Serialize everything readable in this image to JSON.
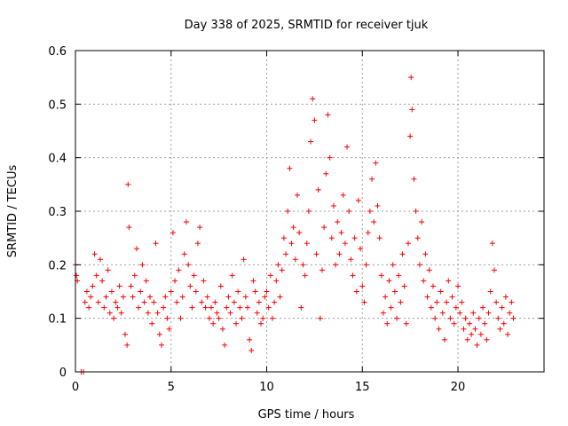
{
  "chart_data": {
    "type": "scatter",
    "title": "Day 338 of 2025, SRMTID for receiver tjuk",
    "xlabel": "GPS time / hours",
    "ylabel": "SRMTID / TECUs",
    "xlim": [
      0,
      24.5
    ],
    "ylim": [
      0,
      0.6
    ],
    "x_ticks": [
      0,
      5,
      10,
      15,
      20
    ],
    "x_tick_labels": [
      "0",
      "5",
      "10",
      "15",
      "20"
    ],
    "y_ticks": [
      0,
      0.1,
      0.2,
      0.3,
      0.4,
      0.5,
      0.6
    ],
    "y_tick_labels": [
      "0",
      "0.1",
      "0.2",
      "0.3",
      "0.4",
      "0.5",
      "0.6"
    ],
    "grid": true,
    "marker": "+",
    "series": [
      {
        "name": "SRMTID",
        "color": "#ff0000",
        "points": [
          [
            0.0,
            0.2
          ],
          [
            0.05,
            0.18
          ],
          [
            0.1,
            0.17
          ],
          [
            0.3,
            0.0
          ],
          [
            0.42,
            0.0
          ],
          [
            0.5,
            0.13
          ],
          [
            0.6,
            0.15
          ],
          [
            0.7,
            0.12
          ],
          [
            0.8,
            0.14
          ],
          [
            0.9,
            0.16
          ],
          [
            1.0,
            0.22
          ],
          [
            1.1,
            0.18
          ],
          [
            1.2,
            0.13
          ],
          [
            1.3,
            0.21
          ],
          [
            1.4,
            0.17
          ],
          [
            1.5,
            0.12
          ],
          [
            1.6,
            0.14
          ],
          [
            1.7,
            0.19
          ],
          [
            1.8,
            0.11
          ],
          [
            1.9,
            0.15
          ],
          [
            2.0,
            0.1
          ],
          [
            2.1,
            0.13
          ],
          [
            2.2,
            0.12
          ],
          [
            2.3,
            0.16
          ],
          [
            2.4,
            0.11
          ],
          [
            2.5,
            0.14
          ],
          [
            2.6,
            0.07
          ],
          [
            2.7,
            0.05
          ],
          [
            2.75,
            0.35
          ],
          [
            2.8,
            0.27
          ],
          [
            2.9,
            0.16
          ],
          [
            3.0,
            0.14
          ],
          [
            3.1,
            0.18
          ],
          [
            3.2,
            0.23
          ],
          [
            3.3,
            0.12
          ],
          [
            3.4,
            0.15
          ],
          [
            3.5,
            0.2
          ],
          [
            3.6,
            0.13
          ],
          [
            3.7,
            0.17
          ],
          [
            3.8,
            0.11
          ],
          [
            3.9,
            0.14
          ],
          [
            4.0,
            0.09
          ],
          [
            4.1,
            0.13
          ],
          [
            4.2,
            0.24
          ],
          [
            4.3,
            0.11
          ],
          [
            4.4,
            0.07
          ],
          [
            4.5,
            0.05
          ],
          [
            4.6,
            0.12
          ],
          [
            4.7,
            0.14
          ],
          [
            4.8,
            0.1
          ],
          [
            4.9,
            0.08
          ],
          [
            5.0,
            0.15
          ],
          [
            5.1,
            0.26
          ],
          [
            5.2,
            0.17
          ],
          [
            5.3,
            0.13
          ],
          [
            5.4,
            0.19
          ],
          [
            5.5,
            0.1
          ],
          [
            5.6,
            0.14
          ],
          [
            5.7,
            0.22
          ],
          [
            5.8,
            0.28
          ],
          [
            5.9,
            0.2
          ],
          [
            6.0,
            0.16
          ],
          [
            6.1,
            0.12
          ],
          [
            6.2,
            0.18
          ],
          [
            6.3,
            0.15
          ],
          [
            6.4,
            0.24
          ],
          [
            6.5,
            0.27
          ],
          [
            6.6,
            0.13
          ],
          [
            6.7,
            0.17
          ],
          [
            6.8,
            0.12
          ],
          [
            6.9,
            0.14
          ],
          [
            7.0,
            0.1
          ],
          [
            7.1,
            0.12
          ],
          [
            7.2,
            0.09
          ],
          [
            7.3,
            0.13
          ],
          [
            7.4,
            0.11
          ],
          [
            7.5,
            0.1
          ],
          [
            7.6,
            0.16
          ],
          [
            7.7,
            0.08
          ],
          [
            7.8,
            0.05
          ],
          [
            7.9,
            0.12
          ],
          [
            8.0,
            0.14
          ],
          [
            8.1,
            0.11
          ],
          [
            8.2,
            0.18
          ],
          [
            8.3,
            0.13
          ],
          [
            8.4,
            0.09
          ],
          [
            8.5,
            0.15
          ],
          [
            8.6,
            0.12
          ],
          [
            8.7,
            0.1
          ],
          [
            8.8,
            0.21
          ],
          [
            8.9,
            0.14
          ],
          [
            9.0,
            0.12
          ],
          [
            9.1,
            0.06
          ],
          [
            9.2,
            0.04
          ],
          [
            9.3,
            0.17
          ],
          [
            9.4,
            0.15
          ],
          [
            9.5,
            0.11
          ],
          [
            9.6,
            0.13
          ],
          [
            9.7,
            0.09
          ],
          [
            9.8,
            0.1
          ],
          [
            9.9,
            0.14
          ],
          [
            10.0,
            0.15
          ],
          [
            10.1,
            0.12
          ],
          [
            10.2,
            0.18
          ],
          [
            10.3,
            0.1
          ],
          [
            10.4,
            0.13
          ],
          [
            10.5,
            0.17
          ],
          [
            10.6,
            0.2
          ],
          [
            10.7,
            0.14
          ],
          [
            10.8,
            0.19
          ],
          [
            10.9,
            0.25
          ],
          [
            11.0,
            0.22
          ],
          [
            11.1,
            0.3
          ],
          [
            11.2,
            0.38
          ],
          [
            11.3,
            0.24
          ],
          [
            11.4,
            0.27
          ],
          [
            11.5,
            0.21
          ],
          [
            11.6,
            0.33
          ],
          [
            11.7,
            0.26
          ],
          [
            11.8,
            0.12
          ],
          [
            11.9,
            0.2
          ],
          [
            12.0,
            0.18
          ],
          [
            12.1,
            0.24
          ],
          [
            12.2,
            0.3
          ],
          [
            12.3,
            0.43
          ],
          [
            12.4,
            0.51
          ],
          [
            12.5,
            0.47
          ],
          [
            12.6,
            0.22
          ],
          [
            12.7,
            0.34
          ],
          [
            12.8,
            0.1
          ],
          [
            12.9,
            0.19
          ],
          [
            13.0,
            0.27
          ],
          [
            13.1,
            0.37
          ],
          [
            13.2,
            0.48
          ],
          [
            13.3,
            0.4
          ],
          [
            13.4,
            0.25
          ],
          [
            13.5,
            0.31
          ],
          [
            13.6,
            0.2
          ],
          [
            13.7,
            0.28
          ],
          [
            13.8,
            0.22
          ],
          [
            13.9,
            0.26
          ],
          [
            14.0,
            0.33
          ],
          [
            14.1,
            0.24
          ],
          [
            14.2,
            0.42
          ],
          [
            14.3,
            0.3
          ],
          [
            14.4,
            0.21
          ],
          [
            14.5,
            0.18
          ],
          [
            14.6,
            0.25
          ],
          [
            14.7,
            0.15
          ],
          [
            14.8,
            0.32
          ],
          [
            14.9,
            0.23
          ],
          [
            15.0,
            0.16
          ],
          [
            15.1,
            0.13
          ],
          [
            15.2,
            0.2
          ],
          [
            15.3,
            0.26
          ],
          [
            15.4,
            0.3
          ],
          [
            15.5,
            0.36
          ],
          [
            15.6,
            0.28
          ],
          [
            15.7,
            0.39
          ],
          [
            15.8,
            0.31
          ],
          [
            15.9,
            0.25
          ],
          [
            16.0,
            0.18
          ],
          [
            16.1,
            0.11
          ],
          [
            16.2,
            0.14
          ],
          [
            16.3,
            0.09
          ],
          [
            16.4,
            0.17
          ],
          [
            16.5,
            0.12
          ],
          [
            16.6,
            0.2
          ],
          [
            16.7,
            0.15
          ],
          [
            16.8,
            0.1
          ],
          [
            16.9,
            0.18
          ],
          [
            17.0,
            0.13
          ],
          [
            17.1,
            0.22
          ],
          [
            17.2,
            0.16
          ],
          [
            17.3,
            0.09
          ],
          [
            17.4,
            0.24
          ],
          [
            17.5,
            0.44
          ],
          [
            17.55,
            0.55
          ],
          [
            17.6,
            0.49
          ],
          [
            17.7,
            0.36
          ],
          [
            17.8,
            0.3
          ],
          [
            17.9,
            0.25
          ],
          [
            18.0,
            0.2
          ],
          [
            18.1,
            0.28
          ],
          [
            18.2,
            0.17
          ],
          [
            18.3,
            0.22
          ],
          [
            18.4,
            0.14
          ],
          [
            18.5,
            0.19
          ],
          [
            18.6,
            0.12
          ],
          [
            18.7,
            0.16
          ],
          [
            18.8,
            0.1
          ],
          [
            18.9,
            0.13
          ],
          [
            19.0,
            0.08
          ],
          [
            19.1,
            0.15
          ],
          [
            19.2,
            0.11
          ],
          [
            19.3,
            0.06
          ],
          [
            19.4,
            0.13
          ],
          [
            19.5,
            0.17
          ],
          [
            19.6,
            0.1
          ],
          [
            19.7,
            0.14
          ],
          [
            19.8,
            0.09
          ],
          [
            19.9,
            0.12
          ],
          [
            20.0,
            0.16
          ],
          [
            20.1,
            0.11
          ],
          [
            20.2,
            0.13
          ],
          [
            20.3,
            0.08
          ],
          [
            20.4,
            0.1
          ],
          [
            20.5,
            0.06
          ],
          [
            20.6,
            0.09
          ],
          [
            20.7,
            0.07
          ],
          [
            20.8,
            0.11
          ],
          [
            20.9,
            0.08
          ],
          [
            21.0,
            0.05
          ],
          [
            21.1,
            0.1
          ],
          [
            21.2,
            0.07
          ],
          [
            21.3,
            0.12
          ],
          [
            21.4,
            0.09
          ],
          [
            21.5,
            0.06
          ],
          [
            21.6,
            0.11
          ],
          [
            21.7,
            0.15
          ],
          [
            21.8,
            0.24
          ],
          [
            21.9,
            0.19
          ],
          [
            22.0,
            0.13
          ],
          [
            22.1,
            0.1
          ],
          [
            22.2,
            0.08
          ],
          [
            22.3,
            0.12
          ],
          [
            22.4,
            0.09
          ],
          [
            22.5,
            0.14
          ],
          [
            22.6,
            0.07
          ],
          [
            22.7,
            0.11
          ],
          [
            22.8,
            0.13
          ],
          [
            22.9,
            0.1
          ]
        ]
      }
    ]
  }
}
